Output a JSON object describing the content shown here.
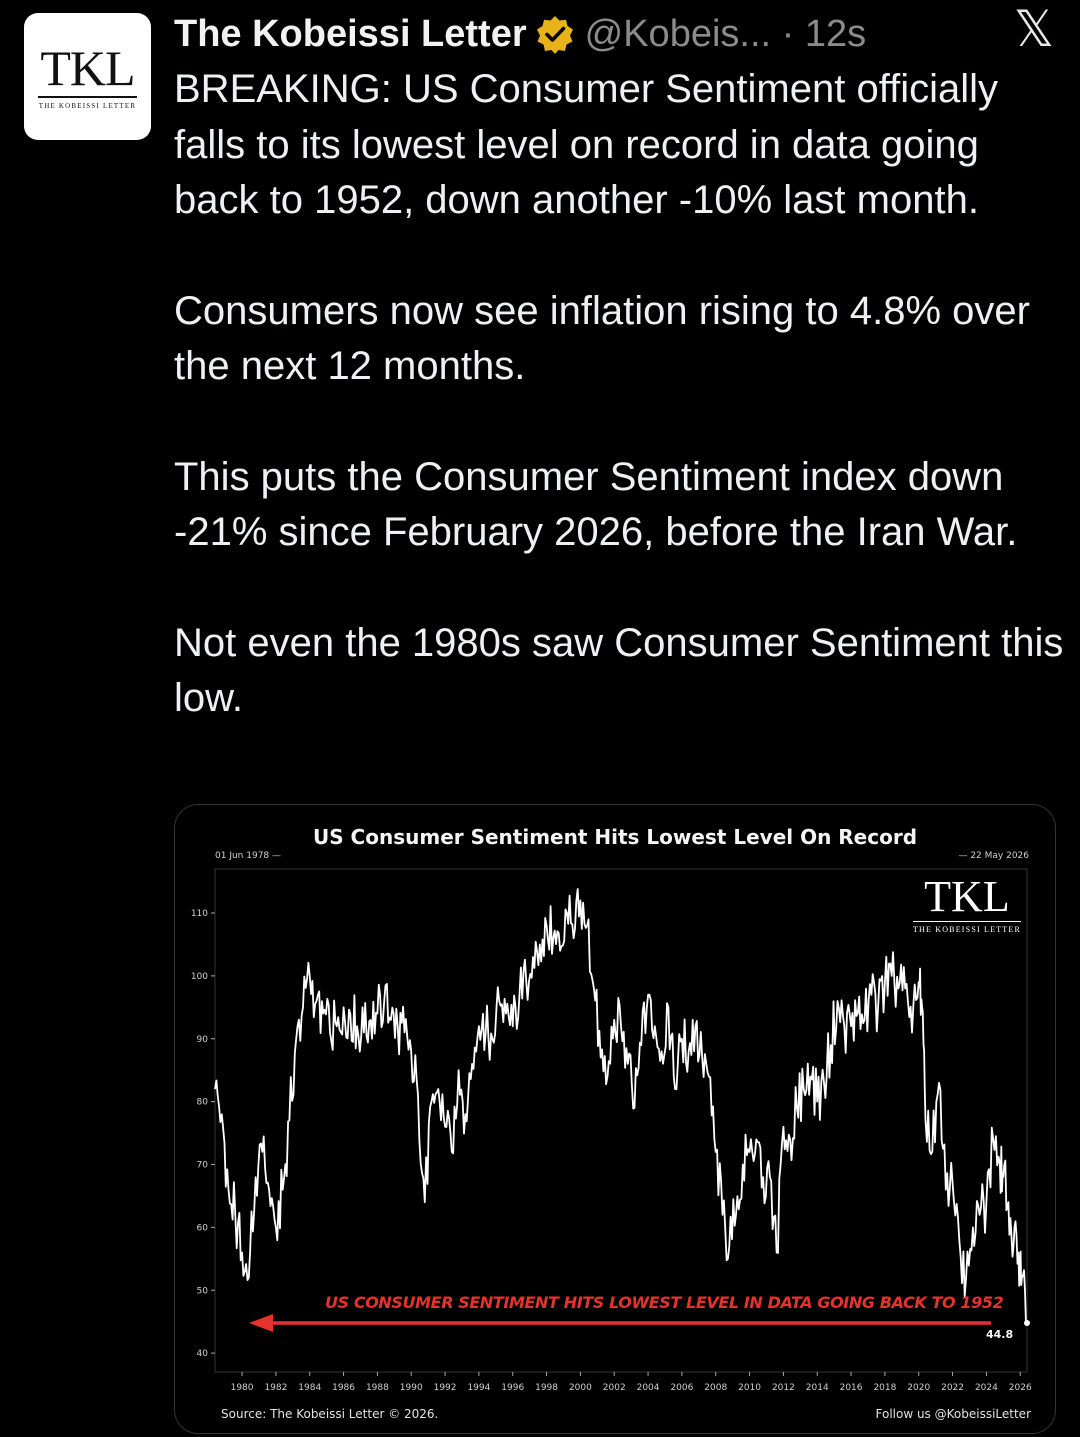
{
  "author": {
    "name": "The Kobeissi Letter",
    "handle": "@Kobeis...",
    "time": "· 12s",
    "avatar_monogram": "TKL",
    "avatar_subtitle": "THE KOBEISSI LETTER",
    "verified_icon": "verified-badge-gold"
  },
  "platform_icon": "x-logo",
  "tweet": {
    "paragraphs": [
      "BREAKING: US Consumer Sentiment officially falls to its lowest level on record in data going back to 1952, down another -10% last month.",
      "Consumers now see inflation rising to 4.8% over the next 12 months.",
      "This puts the Consumer Sentiment index down -21% since February 2026, before the Iran War.",
      "Not even the 1980s saw Consumer Sentiment this low."
    ]
  },
  "card": {
    "watermark_monogram": "TKL",
    "watermark_subtitle": "THE KOBEISSI LETTER",
    "start_date_label": "01 Jun 1978 —",
    "end_date_label": "— 22 May 2026",
    "annotation": "US CONSUMER SENTIMENT HITS LOWEST LEVEL IN DATA GOING BACK TO 1952",
    "last_value_label": "44.8",
    "source": "Source: The Kobeissi Letter © 2026.",
    "follow": "Follow us @KobeissiLetter"
  },
  "colors": {
    "annotation_red": "#e5322d",
    "badge_gold": "#e8b21a",
    "line": "#ffffff"
  },
  "chart_data": {
    "type": "line",
    "title": "US Consumer Sentiment Hits Lowest Level On Record",
    "xlabel": "",
    "ylabel": "",
    "xlim": [
      1978.4,
      2026.4
    ],
    "ylim": [
      37,
      117
    ],
    "yticks": [
      40,
      50,
      60,
      70,
      80,
      90,
      100,
      110
    ],
    "xticks": [
      "1980",
      "1982",
      "1984",
      "1986",
      "1988",
      "1990",
      "1992",
      "1994",
      "1996",
      "1998",
      "2000",
      "2002",
      "2004",
      "2006",
      "2008",
      "2010",
      "2012",
      "2014",
      "2016",
      "2018",
      "2020",
      "2022",
      "2024",
      "2026"
    ],
    "grid": false,
    "series": [
      {
        "x": [
          1978.4,
          1978.8,
          1979.2,
          1979.6,
          1980.0,
          1980.4,
          1980.8,
          1981.2,
          1981.6,
          1982.0,
          1982.4,
          1982.8,
          1983.2,
          1983.6,
          1984.0,
          1984.4,
          1984.8,
          1985.2,
          1985.6,
          1986.0,
          1986.4,
          1986.8,
          1987.2,
          1987.6,
          1988.0,
          1988.4,
          1988.8,
          1989.2,
          1989.6,
          1990.0,
          1990.4,
          1990.8,
          1991.2,
          1991.6,
          1992.0,
          1992.4,
          1992.8,
          1993.2,
          1993.6,
          1994.0,
          1994.4,
          1994.8,
          1995.2,
          1995.6,
          1996.0,
          1996.4,
          1996.8,
          1997.2,
          1997.6,
          1998.0,
          1998.4,
          1998.8,
          1999.2,
          1999.6,
          2000.0,
          2000.4,
          2000.8,
          2001.2,
          2001.6,
          2002.0,
          2002.4,
          2002.8,
          2003.2,
          2003.6,
          2004.0,
          2004.4,
          2004.8,
          2005.2,
          2005.6,
          2006.0,
          2006.4,
          2006.8,
          2007.2,
          2007.6,
          2008.0,
          2008.4,
          2008.8,
          2009.2,
          2009.6,
          2010.0,
          2010.4,
          2010.8,
          2011.2,
          2011.6,
          2012.0,
          2012.4,
          2012.8,
          2013.2,
          2013.6,
          2014.0,
          2014.4,
          2014.8,
          2015.2,
          2015.6,
          2016.0,
          2016.4,
          2016.8,
          2017.2,
          2017.6,
          2018.0,
          2018.4,
          2018.8,
          2019.2,
          2019.6,
          2020.0,
          2020.2,
          2020.4,
          2020.8,
          2021.2,
          2021.6,
          2022.0,
          2022.4,
          2022.8,
          2023.2,
          2023.6,
          2024.0,
          2024.4,
          2024.8,
          2025.0,
          2025.3,
          2025.6,
          2025.9,
          2026.1,
          2026.4
        ],
        "values": [
          82,
          78,
          66,
          62,
          56,
          52,
          68,
          72,
          66,
          60,
          66,
          77,
          90,
          95,
          100,
          96,
          94,
          91,
          92,
          95,
          94,
          92,
          91,
          93,
          94,
          96,
          93,
          92,
          91,
          88,
          81,
          64,
          80,
          82,
          76,
          72,
          85,
          78,
          86,
          92,
          91,
          90,
          96,
          94,
          92,
          97,
          99,
          103,
          105,
          108,
          106,
          104,
          110,
          106,
          112,
          108,
          98,
          87,
          84,
          93,
          92,
          86,
          79,
          89,
          97,
          92,
          88,
          95,
          82,
          90,
          88,
          92,
          87,
          84,
          72,
          62,
          57,
          62,
          70,
          72,
          74,
          68,
          68,
          56,
          76,
          74,
          79,
          82,
          84,
          80,
          83,
          89,
          96,
          92,
          92,
          94,
          93,
          97,
          95,
          99,
          100,
          98,
          98,
          91,
          99,
          95,
          77,
          72,
          83,
          66,
          67,
          58,
          52,
          60,
          62,
          64,
          74,
          70,
          68,
          64,
          57,
          56,
          52,
          44.8
        ]
      }
    ]
  }
}
